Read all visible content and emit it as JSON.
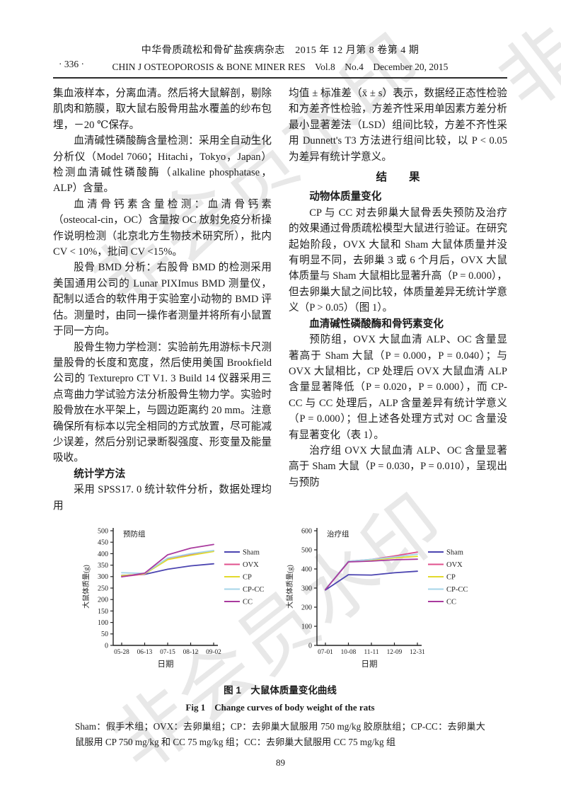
{
  "watermark": {
    "text": "非会员水印"
  },
  "header": {
    "journal_cn": "中华骨质疏松和骨矿盐疾病杂志　2015 年 12 月第 8 卷第 4 期",
    "journal_en": "CHIN J OSTEOPOROSIS & BONE MINER RES　Vol.8　No.4　December 20, 2015",
    "page_badge": "· 336 ·"
  },
  "left_column": {
    "paragraphs": {
      "p1": "集血液样本，分离血清。然后将大鼠解剖，剔除肌肉和筋膜，取大鼠右股骨用盐水覆盖的纱布包埋，－20 ℃保存。",
      "p2": "血清碱性磷酸酶含量检测：采用全自动生化分析仪（Model 7060；Hitachi，Tokyo，Japan）检测血清碱性磷酸酶（alkaline phosphatase，ALP）含量。",
      "p3": "血清骨钙素含量检测：血清骨钙素（osteocal-cin，OC）含量按 OC 放射免疫分析操作说明检测（北京北方生物技术研究所），批内 CV < 10%，批间 CV <15%。",
      "p4": "股骨 BMD 分析：右股骨 BMD 的检测采用美国通用公司的 Lunar PIXImus BMD 测量仪，配制以适合的软件用于实验室小动物的 BMD 评估。测量时，由同一操作者测量并将所有小鼠置于同一方向。",
      "p5": "股骨生物力学检测：实验前先用游标卡尺测量股骨的长度和宽度，然后使用美国 Brookfield 公司的 Texturepro CT V1. 3 Build 14 仪器采用三点弯曲力学试验方法分析股骨生物力学。实验时股骨放在水平架上，与圆边距离约 20 mm。注意确保所有标本以完全相同的方式放置，尽可能减少误差，然后分别记录断裂强度、形变量及能量吸收。",
      "h_stats": "统计学方法",
      "p6": "采用 SPSS17. 0 统计软件分析，数据处理均用"
    }
  },
  "right_column": {
    "paragraphs": {
      "p1": "均值 ± 标准差（x̄ ± s）表示，数据经正态性检验和方差齐性检验，方差齐性采用单因素方差分析最小显著差法（LSD）组间比较，方差不齐性采用 Dunnett's T3 方法进行组间比较，以 P < 0.05 为差异有统计学意义。",
      "h_results": "结　　果",
      "h_weight": "动物体质量变化",
      "p2": "CP 与 CC 对去卵巢大鼠骨丢失预防及治疗的效果通过骨质疏松模型大鼠进行验证。在研究起始阶段，OVX 大鼠和 Sham 大鼠体质量并没有明显不同，去卵巢 3 或 6 个月后，OVX 大鼠体质量与 Sham 大鼠相比显著升高（P = 0.000），但去卵巢大鼠之间比较，体质量差异无统计学意义（P > 0.05）（图 1）。",
      "h_alp": "血清碱性磷酸酶和骨钙素变化",
      "p3": "预防组，OVX 大鼠血清 ALP、OC 含量显著高于 Sham 大鼠（P = 0.000，P = 0.040）；与 OVX 大鼠相比，CP 处理后 OVX 大鼠血清 ALP 含量显著降低（P = 0.020，P = 0.000），而 CP-CC 与 CC 处理后，ALP 含量差异有统计学意义（P = 0.000）；但上述各处理方式对 OC 含量没有显著变化（表 1）。",
      "p4": "治疗组 OVX 大鼠血清 ALP、OC 含量显著高于 Sham 大鼠（P = 0.030，P = 0.010），呈现出与预防"
    }
  },
  "chart_data": [
    {
      "type": "line",
      "title": "预防组",
      "ylabel": "大鼠体质量(g)",
      "xlabel": "日期",
      "ylim": [
        0,
        500
      ],
      "ystep": 50,
      "categories": [
        "05-28",
        "06-13",
        "07-15",
        "08-12",
        "09-02"
      ],
      "legend_position": "right",
      "series": [
        {
          "name": "Sham",
          "color": "#4b44b0",
          "values": [
            305,
            310,
            332,
            347,
            356
          ]
        },
        {
          "name": "OVX",
          "color": "#e0508c",
          "values": [
            300,
            311,
            378,
            396,
            413
          ]
        },
        {
          "name": "CP",
          "color": "#e3da2c",
          "values": [
            304,
            312,
            374,
            393,
            410
          ]
        },
        {
          "name": "CP-CC",
          "color": "#a5d5e8",
          "values": [
            317,
            314,
            381,
            400,
            414
          ]
        },
        {
          "name": "CC",
          "color": "#a93a9e",
          "values": [
            299,
            315,
            395,
            424,
            440
          ]
        }
      ]
    },
    {
      "type": "line",
      "title": "治疗组",
      "ylabel": "大鼠体质量(g)",
      "xlabel": "日期",
      "ylim": [
        0,
        600
      ],
      "ystep": 100,
      "categories": [
        "07-01",
        "10-08",
        "11-11",
        "12-09",
        "12-31"
      ],
      "legend_position": "right",
      "series": [
        {
          "name": "Sham",
          "color": "#4b44b0",
          "values": [
            290,
            370,
            368,
            380,
            388
          ]
        },
        {
          "name": "OVX",
          "color": "#e0508c",
          "values": [
            293,
            440,
            450,
            468,
            488
          ]
        },
        {
          "name": "CP",
          "color": "#e3da2c",
          "values": [
            294,
            438,
            447,
            458,
            466
          ]
        },
        {
          "name": "CP-CC",
          "color": "#a5d5e8",
          "values": [
            294,
            440,
            450,
            463,
            477
          ]
        },
        {
          "name": "CC",
          "color": "#a93a9e",
          "values": [
            292,
            437,
            441,
            448,
            451
          ]
        }
      ]
    }
  ],
  "figure": {
    "caption_cn": "图 1　大鼠体质量变化曲线",
    "caption_en": "Fig 1　Change curves of body weight of the rats",
    "note": "Sham：假手术组；OVX：去卵巢组；CP：去卵巢大鼠服用 750 mg/kg 胶原肽组；CP-CC：去卵巢大鼠服用 CP 750 mg/kg 和 CC 75 mg/kg 组；CC：去卵巢大鼠服用 CC 75 mg/kg 组"
  },
  "footer": {
    "page_number": "89"
  }
}
